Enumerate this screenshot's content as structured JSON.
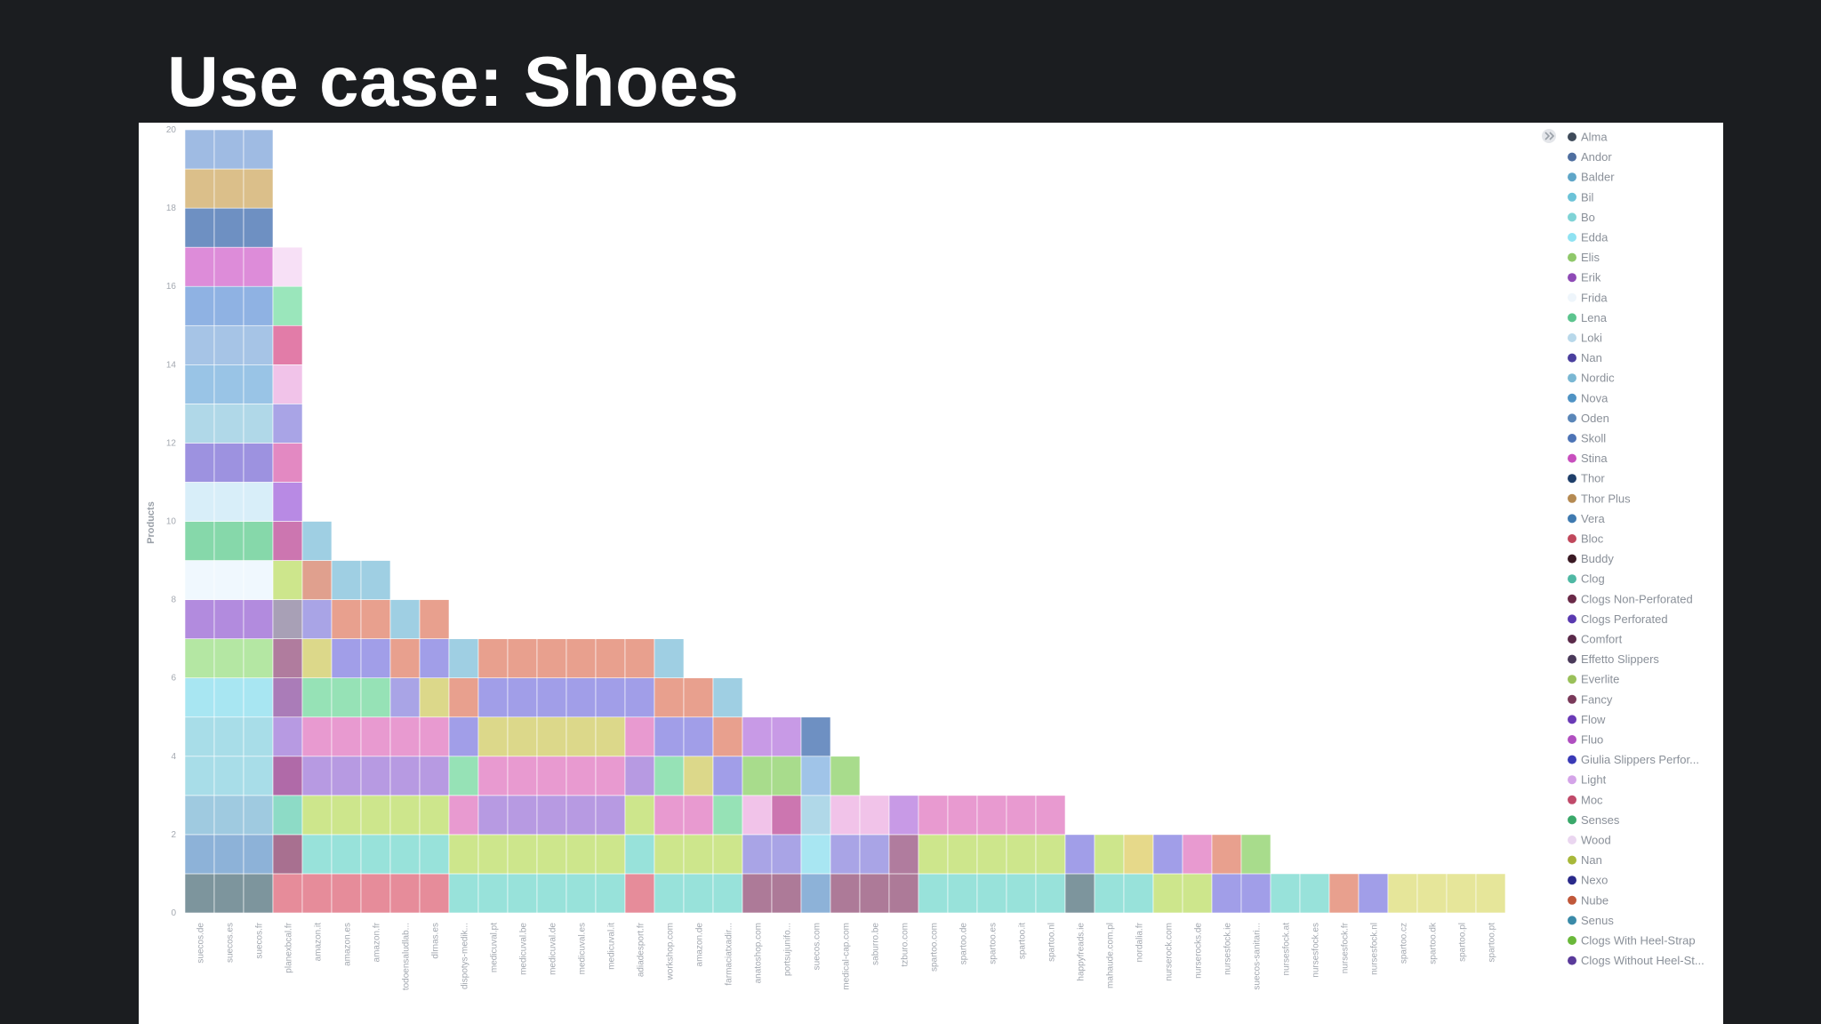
{
  "slide": {
    "title": "Use case: Shoes"
  },
  "chart_data": {
    "type": "bar",
    "stacked": true,
    "ylabel": "Products",
    "ylim": [
      0,
      20
    ],
    "yticks": [
      0,
      2,
      4,
      6,
      8,
      10,
      12,
      14,
      16,
      18,
      20
    ],
    "grid": false,
    "legend_placement": "right",
    "legend_toggle_icon": "legend-toggle-icon",
    "categories": [
      "suecos.de",
      "suecos.es",
      "suecos.fr",
      "planexbcal.fr",
      "amazon.it",
      "amazon.es",
      "amazon.fr",
      "todoensaludlab...",
      "dlrnas.es",
      "dispotys-medik...",
      "medicuval.pt",
      "medicuval.be",
      "medicuval.de",
      "medicuval.es",
      "medicuval.it",
      "adiadesport.fr",
      "workshop.com",
      "amazon.de",
      "farmaciatxadir...",
      "anatoshop.com",
      "portsujunifo...",
      "suecos.com",
      "medical-cap.com",
      "saburro.be",
      "tzburo.com",
      "spartoo.com",
      "spartoo.de",
      "spartoo.es",
      "spartoo.it",
      "spartoo.nl",
      "happyfreads.ie",
      "mahaude.com.pl",
      "nordalia.fr",
      "nurserock.com",
      "nurserocks.de",
      "nursesfock.ie",
      "suecos-sanitari...",
      "nursesfock.at",
      "nursesfock.es",
      "nursesfock.fr",
      "nursesfock.nl",
      "spartoo.cz",
      "spartoo.dk",
      "spartoo.pl",
      "spartoo.pt"
    ],
    "legend": [
      {
        "name": "Alma",
        "color": "#3f4b5a"
      },
      {
        "name": "Andor",
        "color": "#4f6fa0"
      },
      {
        "name": "Balder",
        "color": "#5fa6c8"
      },
      {
        "name": "Bil",
        "color": "#6cc3d8"
      },
      {
        "name": "Bo",
        "color": "#7fd3d6"
      },
      {
        "name": "Edda",
        "color": "#8fe2f2"
      },
      {
        "name": "Elis",
        "color": "#8fc86a"
      },
      {
        "name": "Erik",
        "color": "#8e4ab6"
      },
      {
        "name": "Frida",
        "color": "#eef5fb"
      },
      {
        "name": "Lena",
        "color": "#5cc48e"
      },
      {
        "name": "Loki",
        "color": "#b8d8ea"
      },
      {
        "name": "Nan",
        "color": "#4a3f9e"
      },
      {
        "name": "Nordic",
        "color": "#7ab7d3"
      },
      {
        "name": "Nova",
        "color": "#4f93c4"
      },
      {
        "name": "Oden",
        "color": "#5a86b8"
      },
      {
        "name": "Skoll",
        "color": "#4d74b6"
      },
      {
        "name": "Stina",
        "color": "#c84fbe"
      },
      {
        "name": "Thor",
        "color": "#1f3f6a"
      },
      {
        "name": "Thor Plus",
        "color": "#b58a52"
      },
      {
        "name": "Vera",
        "color": "#3f7ab0"
      },
      {
        "name": "Bloc",
        "color": "#c0485c"
      },
      {
        "name": "Buddy",
        "color": "#3a1a24"
      },
      {
        "name": "Clog",
        "color": "#4fb8a4"
      },
      {
        "name": "Clogs Non-Perforated",
        "color": "#6a2a48"
      },
      {
        "name": "Clogs Perforated",
        "color": "#5a3ab0"
      },
      {
        "name": "Comfort",
        "color": "#5a2a4a"
      },
      {
        "name": "Effetto Slippers",
        "color": "#4a3a5a"
      },
      {
        "name": "Everlite",
        "color": "#9ac05a"
      },
      {
        "name": "Fancy",
        "color": "#7a3a5a"
      },
      {
        "name": "Flow",
        "color": "#6a3ab6"
      },
      {
        "name": "Fluo",
        "color": "#b04fc0"
      },
      {
        "name": "Giulia Slippers Perfor...",
        "color": "#3a3ab6"
      },
      {
        "name": "Light",
        "color": "#d4a4e8"
      },
      {
        "name": "Moc",
        "color": "#c04a6a"
      },
      {
        "name": "Senses",
        "color": "#3aa86a"
      },
      {
        "name": "Wood",
        "color": "#ead6f0"
      },
      {
        "name": "Nan",
        "color": "#a8b83a"
      },
      {
        "name": "Nexo",
        "color": "#2a2a8a"
      },
      {
        "name": "Nube",
        "color": "#c0583a"
      },
      {
        "name": "Senus",
        "color": "#3a8aa8"
      },
      {
        "name": "Clogs With Heel-Strap",
        "color": "#6ab83a"
      },
      {
        "name": "Clogs Without Heel-St...",
        "color": "#5a3a9a"
      }
    ],
    "stacks": [
      [
        "#7d959d",
        "#8db2d8",
        "#9fcae0",
        "#a8dde8",
        "#a8dde8",
        "#a8e6f2",
        "#b4e7a3",
        "#b28bde",
        "#f0f8fe",
        "#86d8aa",
        "#d8eef9",
        "#9d92e0",
        "#b0d8e8",
        "#99c4e6",
        "#a6c4e6",
        "#8fb2e3",
        "#dd8cd9",
        "#6e90c2",
        "#dbbf8a",
        "#9fbbe3"
      ],
      [
        "#7d959d",
        "#8db2d8",
        "#9fcae0",
        "#a8dde8",
        "#a8dde8",
        "#a8e6f2",
        "#b4e7a3",
        "#b28bde",
        "#f0f8fe",
        "#86d8aa",
        "#d8eef9",
        "#9d92e0",
        "#b0d8e8",
        "#99c4e6",
        "#a6c4e6",
        "#8fb2e3",
        "#dd8cd9",
        "#6e90c2",
        "#dbbf8a",
        "#9fbbe3"
      ],
      [
        "#7d959d",
        "#8db2d8",
        "#9fcae0",
        "#a8dde8",
        "#a8dde8",
        "#a8e6f2",
        "#b4e7a3",
        "#b28bde",
        "#f0f8fe",
        "#86d8aa",
        "#d8eef9",
        "#9d92e0",
        "#b0d8e8",
        "#99c4e6",
        "#a6c4e6",
        "#8fb2e3",
        "#dd8cd9",
        "#6e90c2",
        "#dbbf8a",
        "#9fbbe3"
      ],
      [
        "#e68c9a",
        "#a87090",
        "#8ddbc6",
        "#b06aa8",
        "#b79ae2",
        "#aa7cb8",
        "#b07c9e",
        "#a8a0b6",
        "#cde68c",
        "#cc76b0",
        "#b88ae4",
        "#e389c2",
        "#a9a4e6",
        "#f1c3e9",
        "#e27ca8",
        "#9ae6bb",
        "#f7e0f6"
      ],
      [
        "#e68c9a",
        "#98e2da",
        "#cde68c",
        "#b79ae2",
        "#e89ad0",
        "#96e2b6",
        "#dcd88a",
        "#a9a4e6",
        "#e0a08e",
        "#9fcfe3"
      ],
      [
        "#e68c9a",
        "#98e2da",
        "#cde68c",
        "#b79ae2",
        "#e89ad0",
        "#96e2b6",
        "#a19ee8",
        "#e8a08e",
        "#9fcfe3"
      ],
      [
        "#e68c9a",
        "#98e2da",
        "#cde68c",
        "#b79ae2",
        "#e89ad0",
        "#96e2b6",
        "#a19ee8",
        "#e8a08e",
        "#9fcfe3"
      ],
      [
        "#e68c9a",
        "#98e2da",
        "#cde68c",
        "#b79ae2",
        "#e89ad0",
        "#a9a4e6",
        "#e8a08e",
        "#9fcfe3"
      ],
      [
        "#e68c9a",
        "#98e2da",
        "#cde68c",
        "#b79ae2",
        "#e89ad0",
        "#dcd88a",
        "#a19ee8",
        "#e8a08e"
      ],
      [
        "#98e2da",
        "#cde68c",
        "#e89ad0",
        "#96e2b6",
        "#a19ee8",
        "#e8a08e",
        "#9fcfe3"
      ],
      [
        "#98e2da",
        "#cde68c",
        "#b79ae2",
        "#e89ad0",
        "#dcd88a",
        "#a19ee8",
        "#e8a08e"
      ],
      [
        "#98e2da",
        "#cde68c",
        "#b79ae2",
        "#e89ad0",
        "#dcd88a",
        "#a19ee8",
        "#e8a08e"
      ],
      [
        "#98e2da",
        "#cde68c",
        "#b79ae2",
        "#e89ad0",
        "#dcd88a",
        "#a19ee8",
        "#e8a08e"
      ],
      [
        "#98e2da",
        "#cde68c",
        "#b79ae2",
        "#e89ad0",
        "#dcd88a",
        "#a19ee8",
        "#e8a08e"
      ],
      [
        "#98e2da",
        "#cde68c",
        "#b79ae2",
        "#e89ad0",
        "#dcd88a",
        "#a19ee8",
        "#e8a08e"
      ],
      [
        "#e68c9a",
        "#98e2da",
        "#cde68c",
        "#b79ae2",
        "#e89ad0",
        "#a19ee8",
        "#e8a08e"
      ],
      [
        "#98e2da",
        "#cde68c",
        "#e89ad0",
        "#96e2b6",
        "#a19ee8",
        "#e8a08e",
        "#9fcfe3"
      ],
      [
        "#98e2da",
        "#cde68c",
        "#e89ad0",
        "#dcd88a",
        "#a19ee8",
        "#e8a08e"
      ],
      [
        "#98e2da",
        "#cde68c",
        "#96e2b6",
        "#a19ee8",
        "#e8a08e",
        "#9fcfe3"
      ],
      [
        "#ad7a98",
        "#a9a4e6",
        "#f1c3e9",
        "#a8dc8c",
        "#c89ae6"
      ],
      [
        "#ad7a98",
        "#a9a4e6",
        "#cc76b0",
        "#a8dc8c",
        "#c89ae6"
      ],
      [
        "#8db2d8",
        "#a8e6f2",
        "#b0d8e8",
        "#a0c4e8",
        "#6e90c2"
      ],
      [
        "#ad7a98",
        "#a9a4e6",
        "#f1c3e9",
        "#a8dc8c"
      ],
      [
        "#ad7a98",
        "#a9a4e6",
        "#f1c3e9"
      ],
      [
        "#ad7a98",
        "#b07c9e",
        "#c89ae6"
      ],
      [
        "#98e2da",
        "#cde68c",
        "#e89ad0"
      ],
      [
        "#98e2da",
        "#cde68c",
        "#e89ad0"
      ],
      [
        "#98e2da",
        "#cde68c",
        "#e89ad0"
      ],
      [
        "#98e2da",
        "#cde68c",
        "#e89ad0"
      ],
      [
        "#98e2da",
        "#cde68c",
        "#e89ad0"
      ],
      [
        "#7d959d",
        "#a19ee8"
      ],
      [
        "#98e2da",
        "#cde68c"
      ],
      [
        "#98e2da",
        "#e6d98a"
      ],
      [
        "#cde68c",
        "#a19ee8"
      ],
      [
        "#cde68c",
        "#e89ad0"
      ],
      [
        "#a19ee8",
        "#e8a08e"
      ],
      [
        "#a19ee8",
        "#a8dc8c"
      ],
      [
        "#98e2da"
      ],
      [
        "#98e2da"
      ],
      [
        "#e8a08e"
      ],
      [
        "#a19ee8"
      ],
      [
        "#e6e69a"
      ],
      [
        "#e6e69a"
      ],
      [
        "#e6e69a"
      ],
      [
        "#e6e69a"
      ]
    ]
  }
}
